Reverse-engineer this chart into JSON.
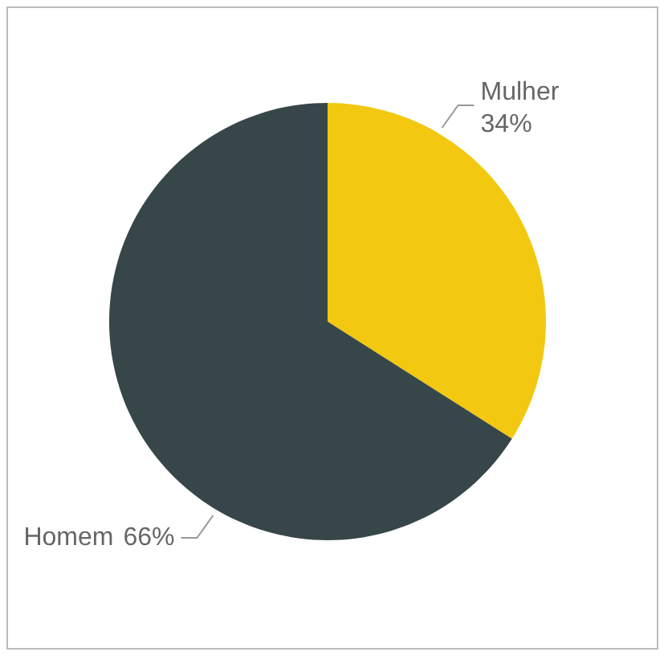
{
  "chart_data": {
    "type": "pie",
    "categories": [
      "Mulher",
      "Homem"
    ],
    "values": [
      34,
      66
    ],
    "colors": [
      "#f2c811",
      "#374649"
    ],
    "value_labels": [
      "34%",
      "66%"
    ],
    "legend": false
  }
}
